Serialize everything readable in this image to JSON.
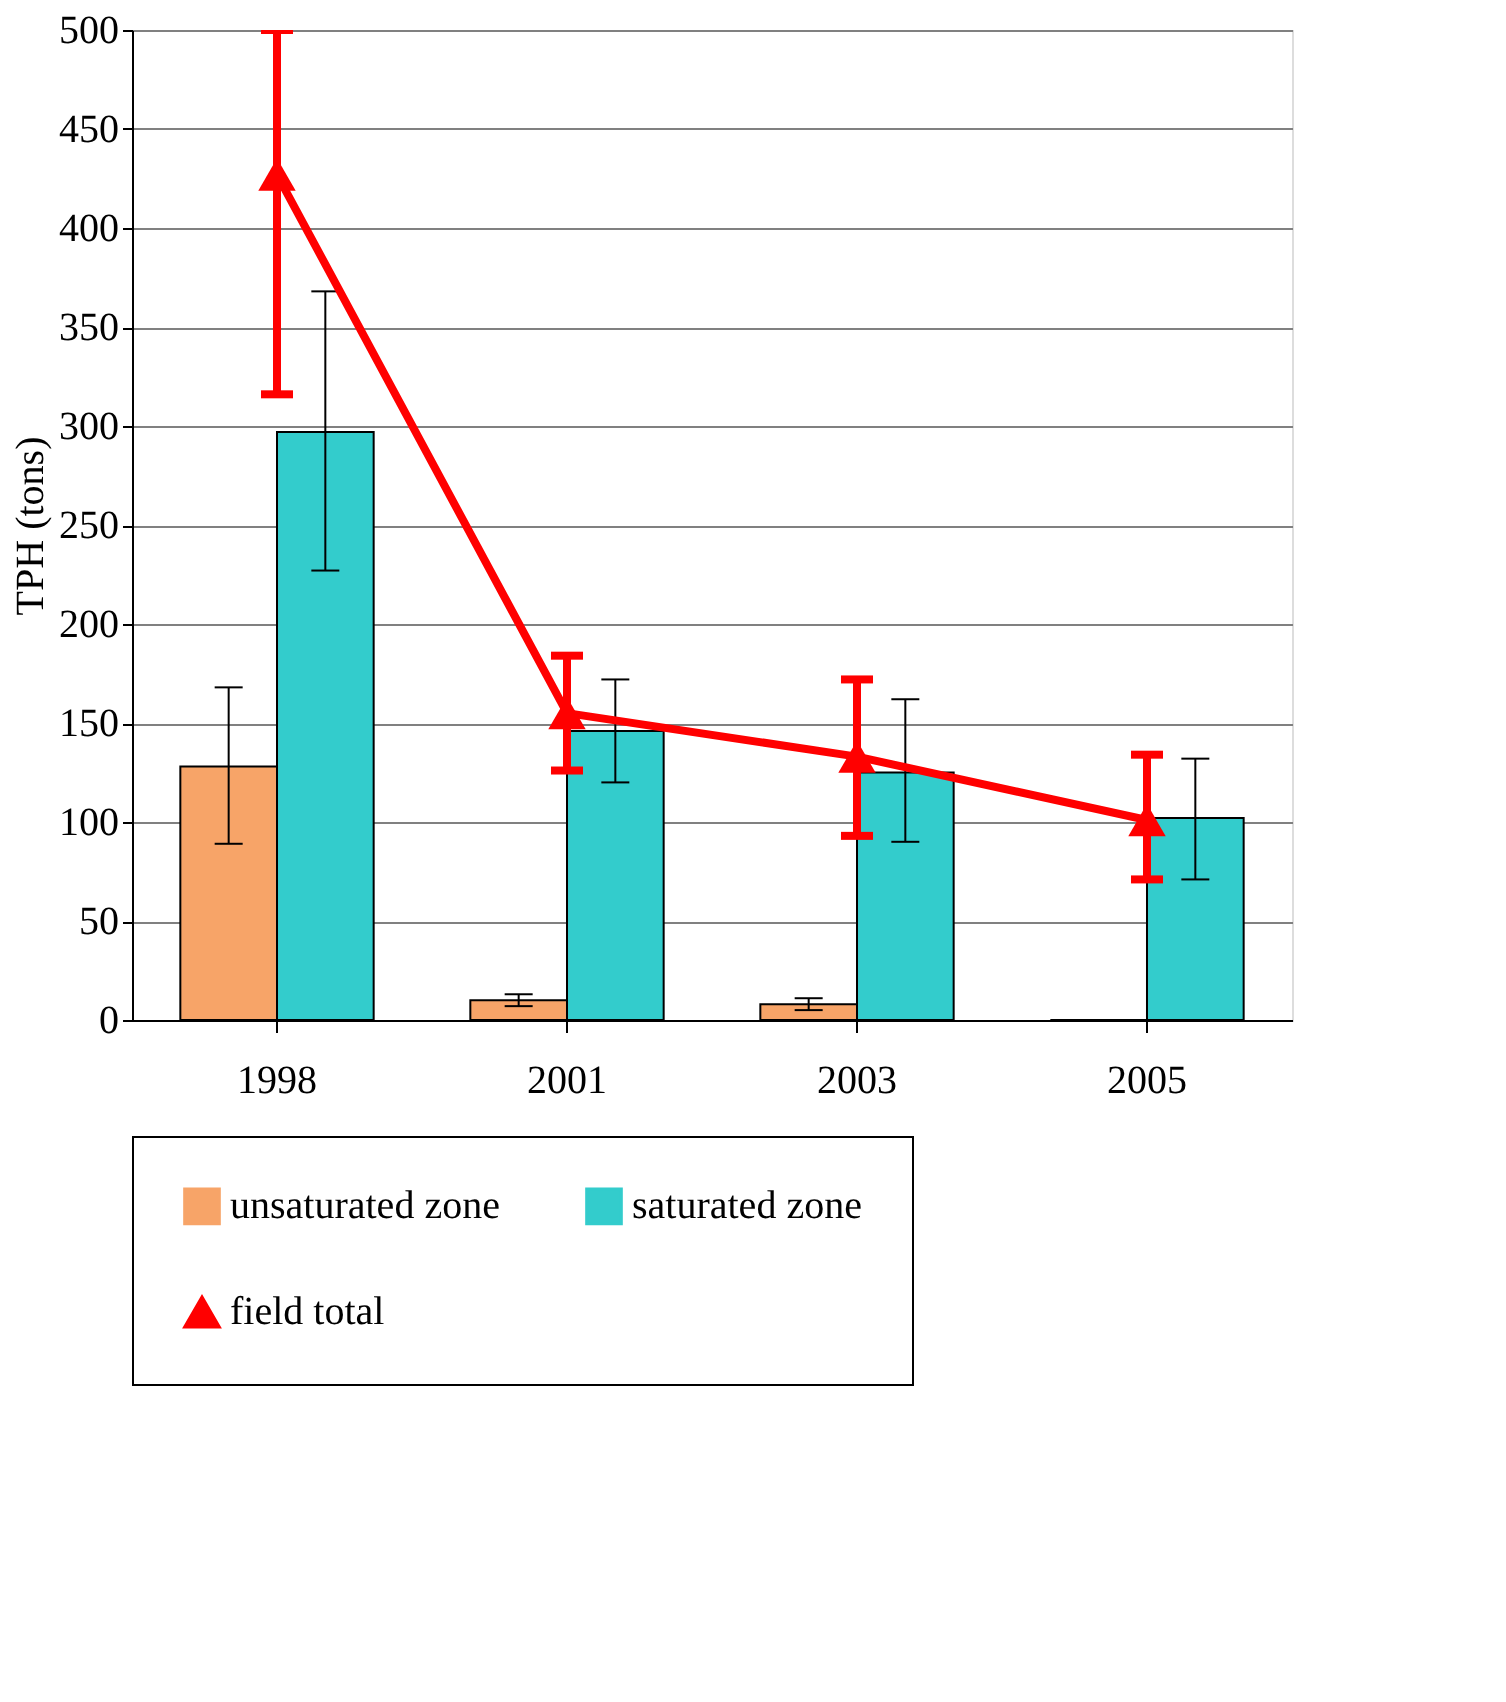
{
  "chart_data": {
    "type": "bar",
    "ylabel": "TPH (tons)",
    "categories": [
      "1998",
      "2001",
      "2003",
      "2005"
    ],
    "series": [
      {
        "name": "unsaturated zone",
        "type": "bar",
        "color": "#f7a468",
        "values": [
          128,
          10,
          8,
          0
        ],
        "errors": [
          [
            89,
            168
          ],
          [
            7,
            13
          ],
          [
            5,
            11
          ],
          null
        ]
      },
      {
        "name": "saturated zone",
        "type": "bar",
        "color": "#33cccc",
        "values": [
          297,
          146,
          125,
          102
        ],
        "errors": [
          [
            227,
            368
          ],
          [
            120,
            172
          ],
          [
            90,
            162
          ],
          [
            71,
            132
          ]
        ]
      },
      {
        "name": "field total",
        "type": "line",
        "color": "#ff0000",
        "marker": "triangle",
        "values": [
          427,
          155,
          133,
          101
        ],
        "errors": [
          [
            316,
            500
          ],
          [
            126,
            184
          ],
          [
            93,
            172
          ],
          [
            71,
            134
          ]
        ]
      }
    ],
    "ylim": [
      0,
      500
    ],
    "yticks": [
      0,
      50,
      100,
      150,
      200,
      250,
      300,
      350,
      400,
      450,
      500
    ],
    "grid": "y",
    "legend": "bottom"
  }
}
